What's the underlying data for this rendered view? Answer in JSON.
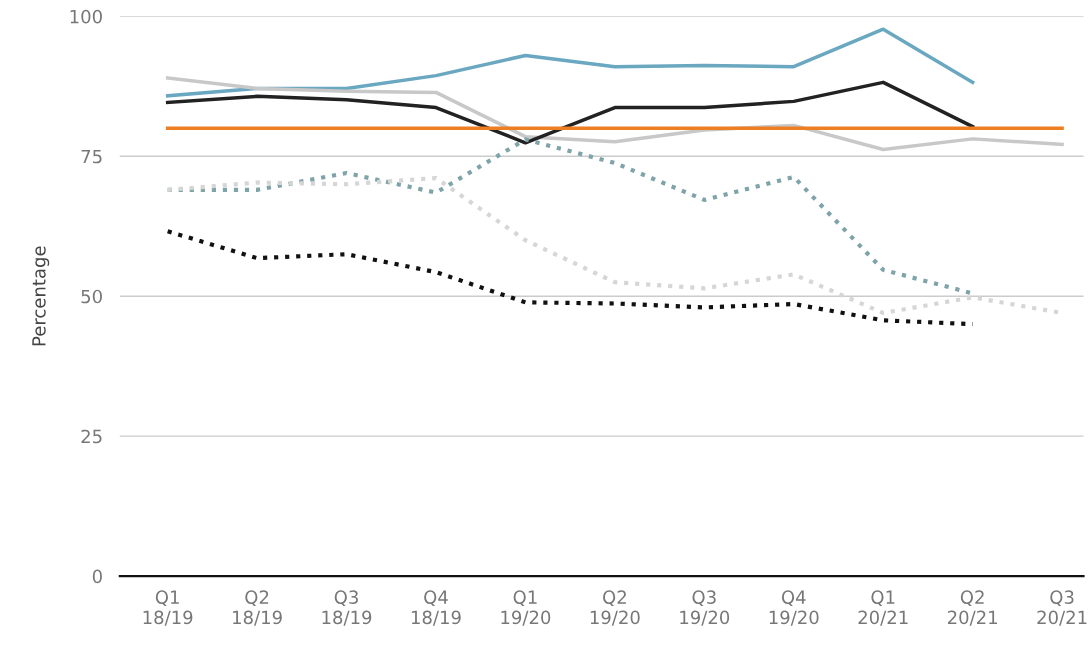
{
  "chart_data": {
    "type": "line",
    "ylabel": "Percentage",
    "categories": [
      "Q1\n18/19",
      "Q2\n18/19",
      "Q3\n18/19",
      "Q4\n18/19",
      "Q1\n19/20",
      "Q2\n19/20",
      "Q3\n19/20",
      "Q4\n19/20",
      "Q1\n20/21",
      "Q2\n20/21",
      "Q3\n20/21"
    ],
    "series": [
      {
        "color": "#6aa7c0",
        "line_style": "solid",
        "values": [
          85.8,
          87.1,
          87.1,
          89.4,
          93,
          91,
          91.2,
          91,
          97.7,
          88.2,
          null
        ]
      },
      {
        "color": "#c8c8c8",
        "line_style": "solid",
        "values": [
          89,
          87.1,
          86.6,
          86.4,
          78.5,
          77.6,
          79.7,
          80.5,
          76.2,
          78.1,
          77.1
        ]
      },
      {
        "color": "#222222",
        "line_style": "solid",
        "values": [
          84.6,
          85.7,
          85.1,
          83.7,
          77.4,
          83.7,
          83.7,
          84.8,
          88.2,
          80.3,
          null
        ]
      },
      {
        "color": "#ef7d22",
        "line_style": "solid",
        "values": [
          80,
          80,
          80,
          80,
          80,
          80,
          80,
          80,
          80,
          80,
          80
        ]
      },
      {
        "color": "#7ea3a8",
        "line_style": "dotted",
        "values": [
          69,
          69,
          72,
          68.5,
          78,
          73.8,
          67.2,
          71.3,
          54.7,
          50.5,
          null
        ]
      },
      {
        "color": "#d6d6d6",
        "line_style": "dotted",
        "values": [
          69,
          70.3,
          70,
          71.1,
          60,
          52.5,
          51.4,
          53.9,
          47,
          49.8,
          47
        ]
      },
      {
        "color": "#111111",
        "line_style": "dotted",
        "values": [
          61.6,
          56.8,
          57.5,
          54.3,
          48.9,
          48.7,
          48,
          48.6,
          45.7,
          45,
          null
        ]
      }
    ],
    "ylim": [
      0,
      100
    ],
    "yticks": [
      0,
      25,
      50,
      75,
      100
    ],
    "grid": "y",
    "marker": "none"
  }
}
